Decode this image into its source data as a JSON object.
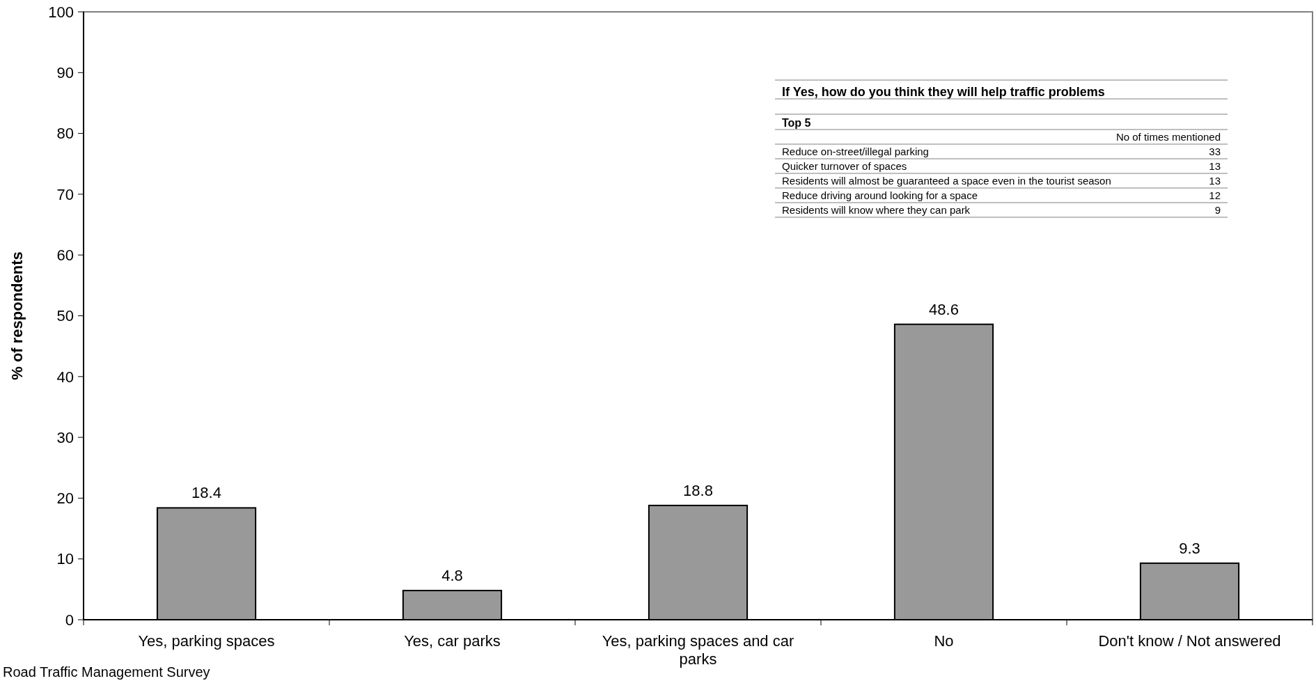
{
  "chart_data": [
    {
      "type": "bar",
      "ylabel": "% of respondents",
      "categories": [
        "Yes, parking spaces",
        "Yes, car parks",
        "Yes, parking spaces and car parks",
        "No",
        "Don't know / Not answered"
      ],
      "values": [
        18.4,
        4.8,
        18.8,
        48.6,
        9.3
      ],
      "color": "#999999",
      "ylim": [
        0,
        100
      ],
      "yticks": [
        0,
        10,
        20,
        30,
        40,
        50,
        60,
        70,
        80,
        90,
        100
      ],
      "data_labels": true,
      "annotations": [
        "Road Traffic Management Survey"
      ]
    },
    {
      "type": "other",
      "title": "If Yes, how do you think they will help traffic problems",
      "subtitle": "Top 5",
      "ylabel": "No of times mentioned",
      "categories": [
        "Reduce on-street/illegal parking",
        "Quicker turnover of spaces",
        "Residents will almost be guaranteed a space even in the tourist season",
        "Reduce driving around looking for a space",
        "Residents will know where they can park"
      ],
      "values": [
        33,
        13,
        13,
        12,
        9
      ],
      "data_labels": true
    }
  ]
}
